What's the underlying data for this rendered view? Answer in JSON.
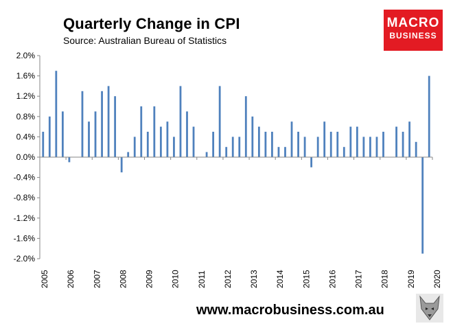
{
  "header": {
    "title": "Quarterly Change in CPI",
    "subtitle": "Source: Australian Bureau of Statistics"
  },
  "logo": {
    "line1": "MACRO",
    "line2": "BUSINESS"
  },
  "footer": {
    "url": "www.macrobusiness.com.au"
  },
  "colors": {
    "bar": "#4f81bd",
    "axis": "#868686",
    "logo_bg": "#e31b23"
  },
  "mascot": {
    "icon": "wolf-mascot-icon"
  },
  "chart_data": {
    "type": "bar",
    "title": "Quarterly Change in CPI",
    "subtitle": "Source: Australian Bureau of Statistics",
    "xlabel": "",
    "ylabel": "",
    "ylim": [
      -2.0,
      2.0
    ],
    "y_ticks": [
      2.0,
      1.6,
      1.2,
      0.8,
      0.4,
      0.0,
      -0.4,
      -0.8,
      -1.2,
      -1.6,
      -2.0
    ],
    "y_tick_labels": [
      "2.0%",
      "1.6%",
      "1.2%",
      "0.8%",
      "0.4%",
      "0.0%",
      "-0.4%",
      "-0.8%",
      "-1.2%",
      "-1.6%",
      "-2.0%"
    ],
    "x_tick_labels": [
      "2005",
      "2006",
      "2007",
      "2008",
      "2009",
      "2010",
      "2011",
      "2012",
      "2013",
      "2014",
      "2015",
      "2016",
      "2017",
      "2018",
      "2019",
      "2020"
    ],
    "x_start_year": 2005,
    "unit": "%",
    "series": [
      {
        "name": "Quarterly change in CPI",
        "values": [
          0.5,
          0.8,
          1.7,
          0.9,
          -0.1,
          0.0,
          1.3,
          0.7,
          0.9,
          1.3,
          1.4,
          1.2,
          -0.3,
          0.1,
          0.4,
          1.0,
          0.5,
          1.0,
          0.6,
          0.7,
          0.4,
          1.4,
          0.9,
          0.6,
          0.0,
          0.1,
          0.5,
          1.4,
          0.2,
          0.4,
          0.4,
          1.2,
          0.8,
          0.6,
          0.5,
          0.5,
          0.2,
          0.2,
          0.7,
          0.5,
          0.4,
          -0.2,
          0.4,
          0.7,
          0.5,
          0.5,
          0.2,
          0.6,
          0.6,
          0.4,
          0.4,
          0.4,
          0.5,
          0.0,
          0.6,
          0.5,
          0.7,
          0.3,
          -1.9,
          1.6
        ]
      }
    ]
  }
}
